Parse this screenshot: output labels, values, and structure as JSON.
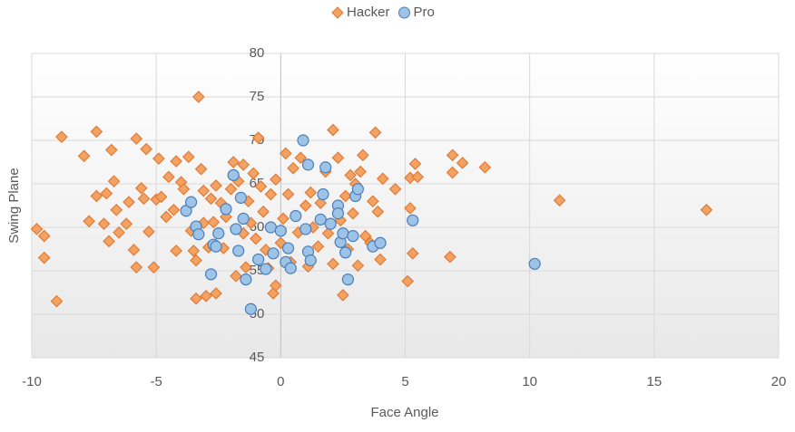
{
  "chart_data": {
    "type": "scatter",
    "x_label": "Face Angle",
    "y_label": "Swing Plane",
    "xlim": [
      -10,
      20
    ],
    "xticks": [
      -10,
      -5,
      0,
      5,
      10,
      15,
      20
    ],
    "ylim": [
      45,
      80
    ],
    "yticks": [
      45,
      50,
      55,
      60,
      65,
      70,
      75,
      80
    ],
    "grid": true,
    "legend": "top",
    "series": [
      {
        "name": "Hacker",
        "color": "#f4a261",
        "marker": "diamond",
        "x": [
          -9.8,
          -9.5,
          -9.5,
          -9,
          -8.8,
          -7.9,
          -7.7,
          -7.4,
          -7.4,
          -7.1,
          -7,
          -6.9,
          -6.8,
          -6.7,
          -6.6,
          -6.5,
          -6.2,
          -6.1,
          -5.9,
          -5.8,
          -5.8,
          -5.6,
          -5.5,
          -5.4,
          -5.3,
          -5.1,
          -5,
          -4.9,
          -4.8,
          -4.6,
          -4.5,
          -4.3,
          -4.2,
          -4.2,
          -4,
          -3.9,
          -3.7,
          -3.6,
          -3.5,
          -3.4,
          -3.4,
          -3.3,
          -3.2,
          -3.1,
          -3.1,
          -3,
          -2.9,
          -2.8,
          -2.7,
          -2.6,
          -2.6,
          -2.4,
          -2.3,
          -2.2,
          -2,
          -1.9,
          -1.8,
          -1.7,
          -1.5,
          -1.5,
          -1.4,
          -1.3,
          -1.2,
          -1.1,
          -1,
          -0.9,
          -0.8,
          -0.7,
          -0.6,
          -0.5,
          -0.4,
          -0.3,
          -0.2,
          -0.2,
          0,
          0.1,
          0.2,
          0.3,
          0.4,
          0.5,
          0.7,
          0.8,
          1,
          1.1,
          1.2,
          1.3,
          1.5,
          1.6,
          1.8,
          1.9,
          2.1,
          2.1,
          2.3,
          2.4,
          2.5,
          2.6,
          2.7,
          2.8,
          2.9,
          3,
          3.1,
          3.2,
          3.3,
          3.4,
          3.6,
          3.7,
          3.8,
          3.9,
          4,
          4.1,
          4.6,
          5.1,
          5.2,
          5.2,
          5.3,
          5.4,
          5.5,
          6.8,
          6.9,
          6.9,
          7.3,
          8.2,
          11.2,
          17.1
        ],
        "values": [
          59.8,
          59,
          56.5,
          51.5,
          70.4,
          68.2,
          60.7,
          71,
          63.6,
          60.4,
          63.9,
          58.4,
          68.9,
          65.3,
          62,
          59.4,
          60.4,
          62.9,
          57.4,
          55.4,
          70.2,
          64.5,
          63.3,
          69,
          59.5,
          55.4,
          63.2,
          67.9,
          63.5,
          61.2,
          65.8,
          62,
          57.3,
          67.6,
          65.2,
          64.4,
          68.1,
          59.6,
          57.3,
          56.2,
          51.8,
          75,
          66.7,
          64.2,
          60.5,
          52.1,
          57.7,
          63.3,
          60.6,
          52.4,
          64.8,
          62.8,
          57.6,
          61.2,
          64.4,
          67.5,
          54.4,
          65.3,
          67.2,
          59.3,
          55.4,
          63,
          60.5,
          66.2,
          58.7,
          70.3,
          64.7,
          61.8,
          57.4,
          55.3,
          63.8,
          52.4,
          65.5,
          53.3,
          58.2,
          61,
          68.5,
          63.8,
          56,
          66.8,
          59.4,
          68,
          62.5,
          55.5,
          64,
          60,
          57.8,
          62.8,
          66.4,
          59.3,
          71.2,
          55.8,
          68,
          60.8,
          52.2,
          63.6,
          57.5,
          66,
          61.6,
          65,
          55.6,
          66.4,
          68.3,
          59,
          58.2,
          63,
          70.9,
          61.8,
          56.3,
          65.6,
          64.4,
          53.8,
          65.7,
          62.2,
          57,
          67.3,
          65.8,
          56.6,
          66.3,
          68.3,
          67.4,
          66.9,
          63.1,
          62
        ]
      },
      {
        "name": "Pro",
        "color": "#9dc3e6",
        "marker": "circle",
        "x": [
          -3.8,
          -3.6,
          -3.4,
          -3.3,
          -2.8,
          -2.7,
          -2.6,
          -2.5,
          -2.2,
          -1.9,
          -1.8,
          -1.7,
          -1.6,
          -1.5,
          -1.4,
          -1.2,
          -0.9,
          -0.6,
          -0.4,
          -0.3,
          0,
          0.2,
          0.3,
          0.4,
          0.6,
          0.9,
          1,
          1.1,
          1.1,
          1.2,
          1.6,
          1.7,
          1.8,
          2,
          2.3,
          2.3,
          2.4,
          2.5,
          2.6,
          2.7,
          2.9,
          3,
          3.1,
          3.7,
          4,
          5.3,
          10.2
        ],
        "values": [
          61.9,
          62.9,
          60.1,
          59.2,
          54.6,
          58,
          57.8,
          59.3,
          62.1,
          66,
          59.8,
          57.3,
          63.4,
          61,
          54,
          50.6,
          56.3,
          55.2,
          60,
          57,
          59.6,
          56,
          57.6,
          55.3,
          61.3,
          70,
          59.8,
          67.2,
          57.2,
          56.2,
          60.9,
          63.8,
          66.9,
          60.4,
          62.5,
          61.6,
          58.3,
          59.3,
          57.1,
          54,
          59,
          63.6,
          64.4,
          57.8,
          58.2,
          60.8,
          55.8
        ]
      }
    ]
  }
}
